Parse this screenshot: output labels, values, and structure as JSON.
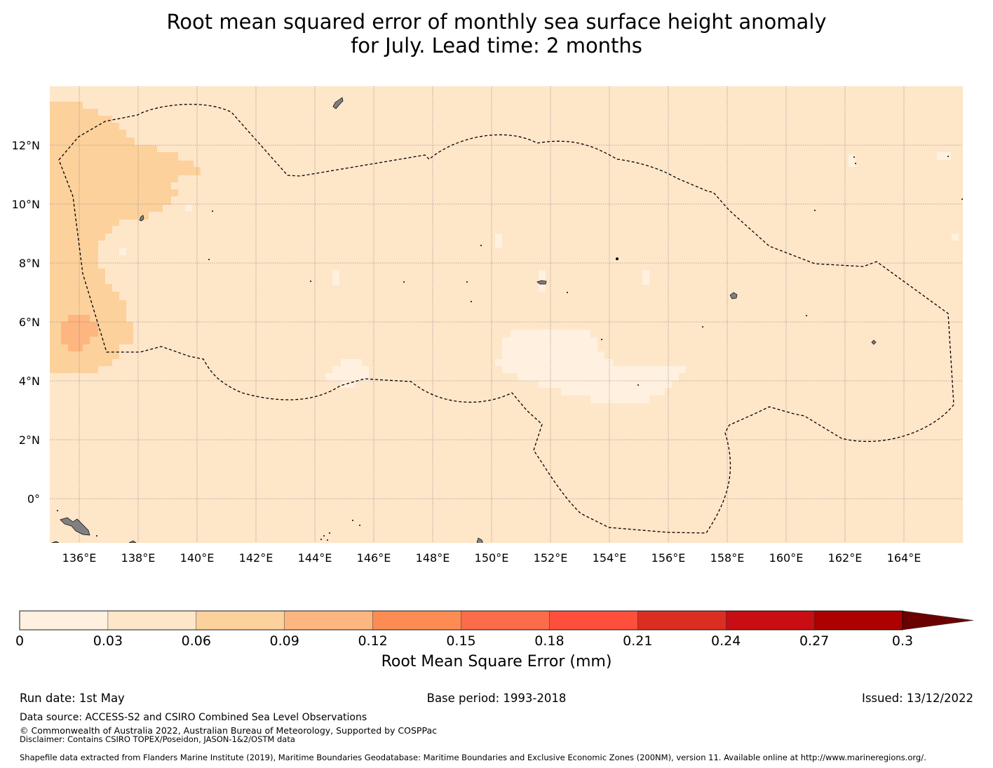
{
  "title": {
    "line1": "Root mean squared error of monthly sea surface height anomaly",
    "line2": "for July. Lead time: 2 months"
  },
  "map": {
    "lon_range": [
      135,
      166
    ],
    "lat_range": [
      -1.5,
      14
    ],
    "lon_ticks": [
      "136°E",
      "138°E",
      "140°E",
      "142°E",
      "144°E",
      "146°E",
      "148°E",
      "150°E",
      "152°E",
      "154°E",
      "156°E",
      "158°E",
      "160°E",
      "162°E",
      "164°E"
    ],
    "lat_ticks": [
      "12°N",
      "10°N",
      "8°N",
      "6°N",
      "4°N",
      "2°N",
      "0°"
    ],
    "background_color": "#fee6c9",
    "land_color": "#808080",
    "eez_boundary_style": "dashed"
  },
  "colorbar": {
    "label": "Root Mean Square Error (mm)",
    "ticks": [
      "0",
      "0.03",
      "0.06",
      "0.09",
      "0.12",
      "0.15",
      "0.18",
      "0.21",
      "0.24",
      "0.27",
      "0.3"
    ],
    "colors": [
      "#fff0e0",
      "#fee6c9",
      "#fdd19c",
      "#fdb67f",
      "#fd8c52",
      "#fc6b4a",
      "#fd4f3c",
      "#db2e22",
      "#c80e13",
      "#ad0000"
    ],
    "extend_color": "#6b0000"
  },
  "footer": {
    "run_date": "Run date: 1st May",
    "base_period": "Base period: 1993-2018",
    "issued": "Issued: 13/12/2022",
    "data_source": "Data source: ACCESS-S2 and CSIRO Combined Sea Level Observations",
    "copyright": "© Commonwealth of Australia 2022, Australian Bureau of Meteorology, Supported by COSPPac",
    "disclaimer": "Disclaimer: Contains CSIRO TOPEX/Poseidon, JASON-1&2/OSTM data",
    "shapefile": "Shapefile data extracted from Flanders Marine Institute (2019), Maritime Boundaries Geodatabase: Maritime Boundaries and Exclusive Economic Zones (200NM), version 11. Available online at http://www.marineregions.org/."
  }
}
